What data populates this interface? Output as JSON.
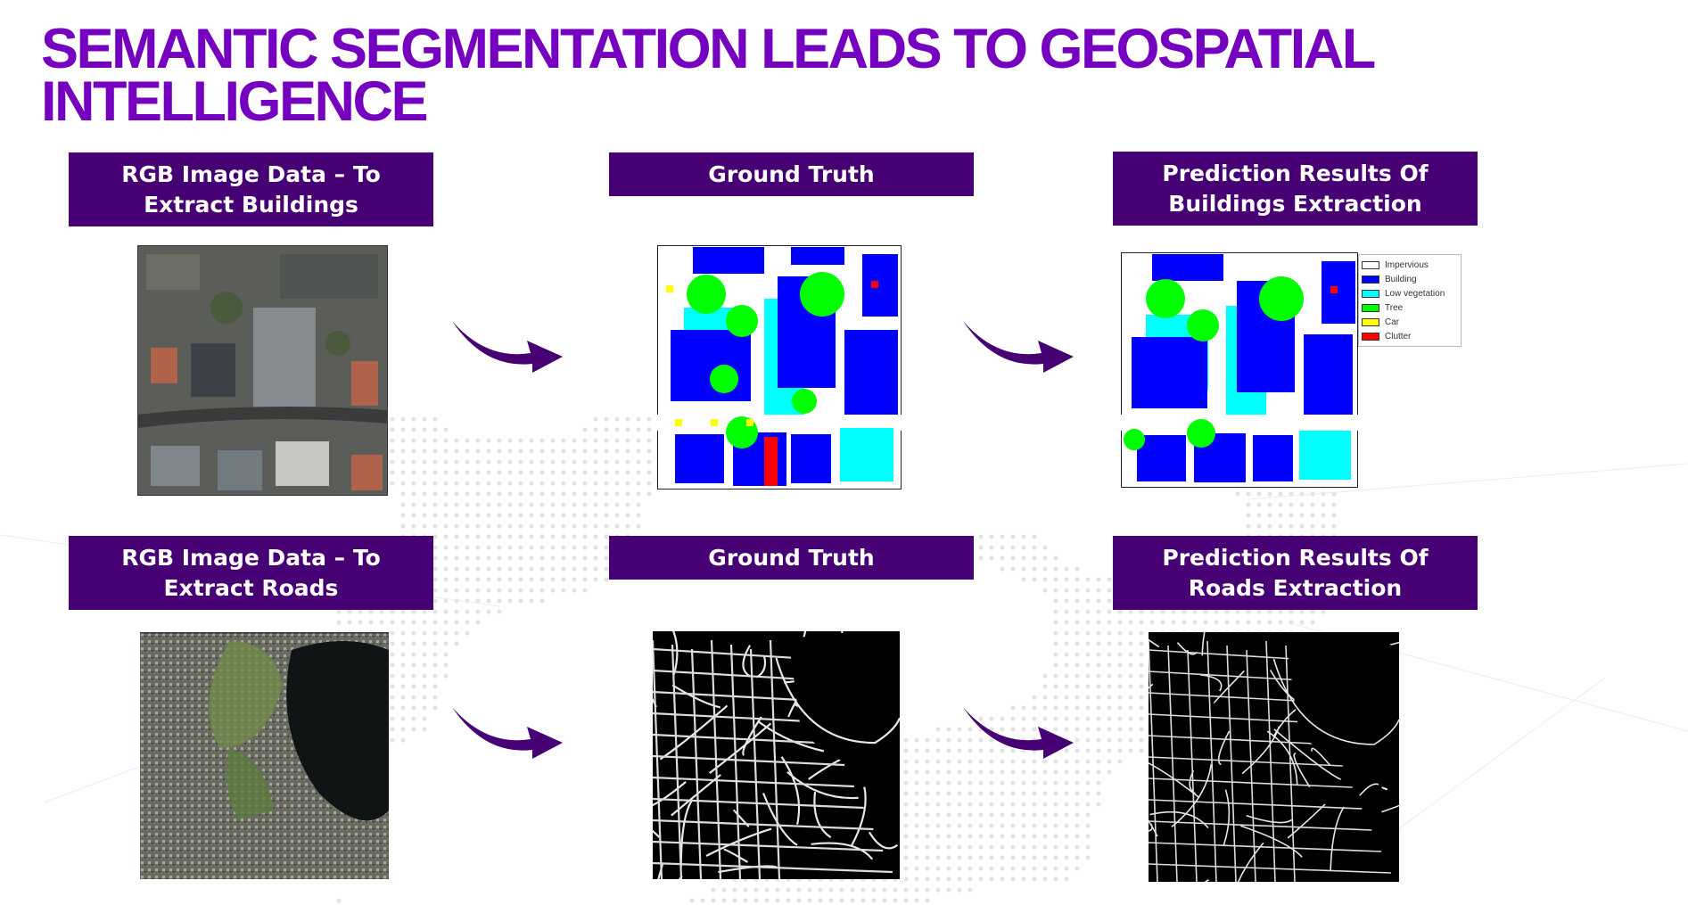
{
  "slide": {
    "title": "SEMANTIC SEGMENTATION LEADS TO GEOSPATIAL INTELLIGENCE",
    "accent_color": "#7500c0",
    "label_color": "#460073"
  },
  "rows": [
    {
      "input_label": "RGB Image Data – To\nExtract Buildings",
      "truth_label": "Ground Truth",
      "prediction_label": "Prediction Results Of\nBuildings Extraction"
    },
    {
      "input_label": "RGB Image Data – To\nExtract Roads",
      "truth_label": "Ground Truth",
      "prediction_label": "Prediction Results Of\nRoads Extraction"
    }
  ],
  "legend": {
    "items": [
      {
        "label": "Impervious",
        "color": "#ffffff"
      },
      {
        "label": "Building",
        "color": "#0000ff"
      },
      {
        "label": "Low vegetation",
        "color": "#00ffff"
      },
      {
        "label": "Tree",
        "color": "#00ff00"
      },
      {
        "label": "Car",
        "color": "#ffff00"
      },
      {
        "label": "Clutter",
        "color": "#ff0000"
      }
    ]
  },
  "icons": [
    "curved-arrow-icon"
  ]
}
